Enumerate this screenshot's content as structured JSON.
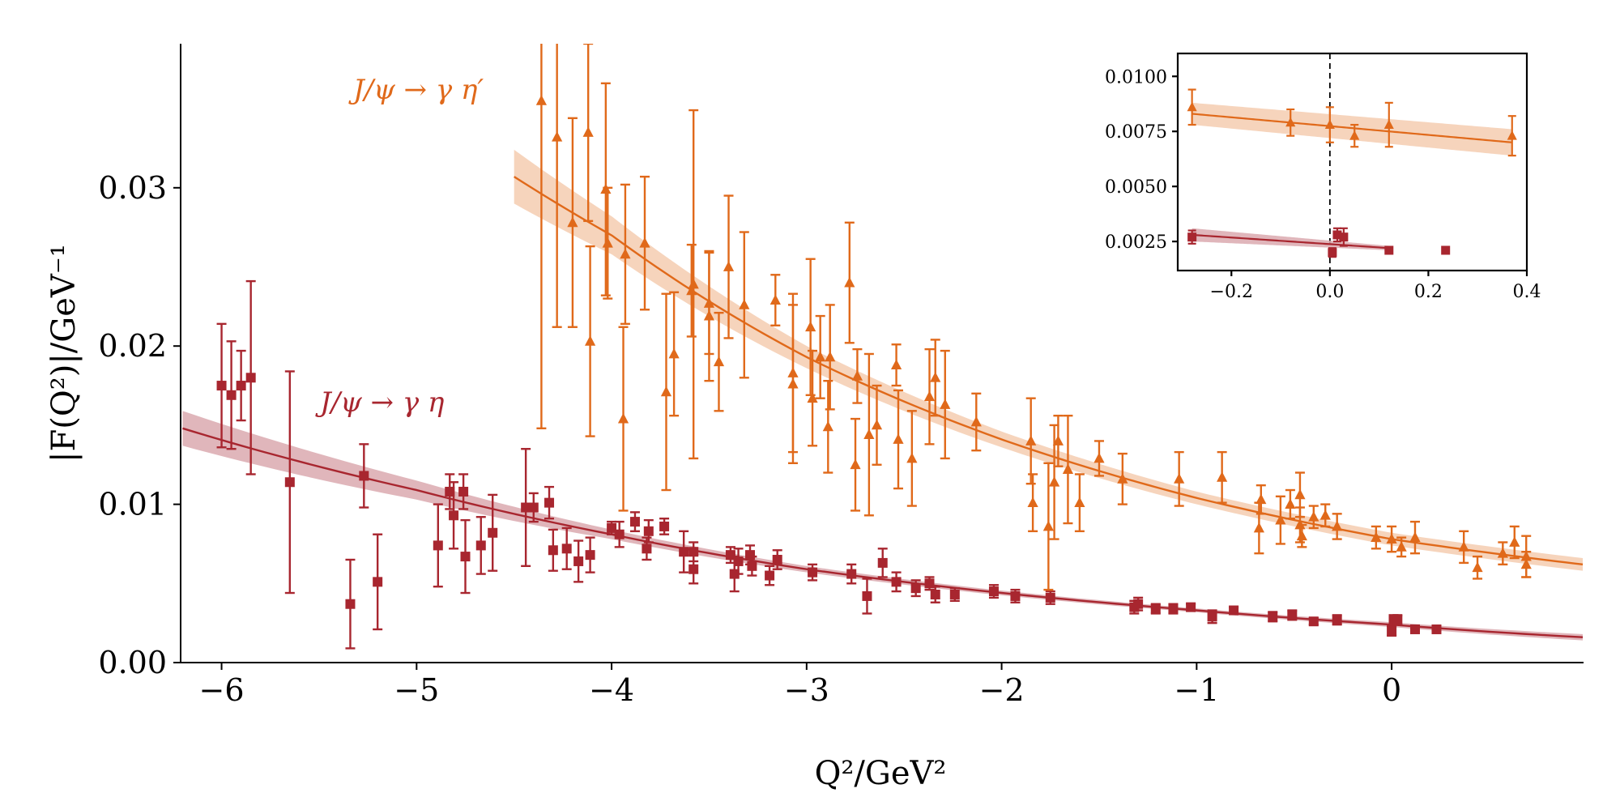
{
  "chart_data": [
    {
      "type": "scatter",
      "xlabel": "Q²/GeV²",
      "ylabel": "|F(Q²)|/GeV⁻¹",
      "xlim": [
        -6.21,
        0.984
      ],
      "ylim": [
        0,
        0.0391
      ],
      "xticks": [
        -6,
        -5,
        -4,
        -3,
        -2,
        -1,
        0
      ],
      "xtick_labels": [
        "−6",
        "−5",
        "−4",
        "−3",
        "−2",
        "−1",
        "0"
      ],
      "yticks": [
        0,
        0.01,
        0.02,
        0.03
      ],
      "ytick_labels": [
        "0.00",
        "0.01",
        "0.02",
        "0.03"
      ],
      "grid": false,
      "series": [
        {
          "name": "J/ψ → γ η",
          "color": "#a8262f",
          "band_color": "#dba9af",
          "marker": "square",
          "points_x_y_err": [
            [
              -6.0,
              0.0175,
              0.0039
            ],
            [
              -5.95,
              0.0169,
              0.0034
            ],
            [
              -5.9,
              0.0175,
              0.0022
            ],
            [
              -5.85,
              0.018,
              0.0061
            ],
            [
              -5.65,
              0.0114,
              0.007
            ],
            [
              -5.34,
              0.0037,
              0.0028
            ],
            [
              -5.27,
              0.0118,
              0.002
            ],
            [
              -5.2,
              0.0051,
              0.003
            ],
            [
              -4.89,
              0.0074,
              0.0026
            ],
            [
              -4.83,
              0.0108,
              0.0011
            ],
            [
              -4.81,
              0.0093,
              0.0021
            ],
            [
              -4.76,
              0.0108,
              0.0011
            ],
            [
              -4.75,
              0.0067,
              0.0023
            ],
            [
              -4.67,
              0.0074,
              0.0018
            ],
            [
              -4.61,
              0.0082,
              0.0024
            ],
            [
              -4.44,
              0.0098,
              0.0037
            ],
            [
              -4.4,
              0.0098,
              0.0009
            ],
            [
              -4.32,
              0.0101,
              0.001
            ],
            [
              -4.3,
              0.0071,
              0.0013
            ],
            [
              -4.23,
              0.0072,
              0.0013
            ],
            [
              -4.17,
              0.0064,
              0.0013
            ],
            [
              -4.11,
              0.0068,
              0.0011
            ],
            [
              -4.0,
              0.0085,
              0.0004
            ],
            [
              -3.96,
              0.0081,
              0.0008
            ],
            [
              -3.88,
              0.0089,
              0.0006
            ],
            [
              -3.82,
              0.0072,
              0.0007
            ],
            [
              -3.81,
              0.0083,
              0.0007
            ],
            [
              -3.73,
              0.0086,
              0.0005
            ],
            [
              -3.63,
              0.007,
              0.0013
            ],
            [
              -3.58,
              0.0059,
              0.0009
            ],
            [
              -3.58,
              0.007,
              0.0006
            ],
            [
              -3.39,
              0.0068,
              0.0005
            ],
            [
              -3.37,
              0.0056,
              0.0011
            ],
            [
              -3.35,
              0.0064,
              0.0008
            ],
            [
              -3.29,
              0.0068,
              0.0006
            ],
            [
              -3.28,
              0.0061,
              0.0006
            ],
            [
              -3.19,
              0.0055,
              0.0006
            ],
            [
              -3.15,
              0.0065,
              0.0006
            ],
            [
              -2.97,
              0.0057,
              0.0005
            ],
            [
              -2.77,
              0.0056,
              0.0006
            ],
            [
              -2.69,
              0.0042,
              0.0011
            ],
            [
              -2.61,
              0.0063,
              0.0009
            ],
            [
              -2.54,
              0.0051,
              0.0006
            ],
            [
              -2.44,
              0.0047,
              0.0005
            ],
            [
              -2.37,
              0.005,
              0.0004
            ],
            [
              -2.34,
              0.0043,
              0.0005
            ],
            [
              -2.24,
              0.0043,
              0.0004
            ],
            [
              -2.04,
              0.0045,
              0.0004
            ],
            [
              -1.93,
              0.0042,
              0.0004
            ],
            [
              -1.75,
              0.0041,
              0.0004
            ],
            [
              -1.32,
              0.0035,
              0.0004
            ],
            [
              -1.3,
              0.0037,
              0.0004
            ],
            [
              -1.21,
              0.0034,
              0.0003
            ],
            [
              -1.12,
              0.0034,
              0.0003
            ],
            [
              -1.03,
              0.0035,
              0.0002
            ],
            [
              -0.92,
              0.0029,
              0.0004
            ],
            [
              -0.81,
              0.0033,
              0.0002
            ],
            [
              -0.61,
              0.0029,
              0.0003
            ],
            [
              -0.51,
              0.003,
              0.0003
            ],
            [
              -0.4,
              0.0026,
              0.0002
            ],
            [
              -0.28,
              0.0027,
              0.0003
            ],
            [
              0.0,
              0.002,
              0.0003
            ],
            [
              0.01,
              0.0027,
              0.0003
            ],
            [
              0.03,
              0.0027,
              0.0003
            ],
            [
              0.12,
              0.0021,
              0.0001
            ],
            [
              0.23,
              0.0021,
              0.0001
            ]
          ],
          "fit_x": [
            -6.2,
            -5,
            -4,
            -3,
            -2,
            -1,
            0,
            0.98
          ],
          "fit_y": [
            0.0148,
            0.0109,
            0.0081,
            0.0059,
            0.0044,
            0.0033,
            0.0024,
            0.0016
          ],
          "fit_band": [
            0.0011,
            0.0006,
            0.0003,
            0.0002,
            0.00015,
            0.00012,
            0.00015,
            0.0002
          ]
        },
        {
          "name": "J/ψ → γ η′",
          "color": "#e0691a",
          "band_color": "#f4cdb0",
          "marker": "triangle",
          "points_x_y_err": [
            [
              -4.36,
              0.0355,
              0.0207
            ],
            [
              -4.28,
              0.0332,
              0.012
            ],
            [
              -4.2,
              0.0278,
              0.0066
            ],
            [
              -4.12,
              0.0335,
              0.0056
            ],
            [
              -4.11,
              0.0203,
              0.006
            ],
            [
              -4.03,
              0.0299,
              0.0067
            ],
            [
              -4.02,
              0.0265,
              0.0035
            ],
            [
              -3.94,
              0.0154,
              0.0058
            ],
            [
              -3.93,
              0.0258,
              0.0044
            ],
            [
              -3.83,
              0.0265,
              0.0042
            ],
            [
              -3.72,
              0.0171,
              0.0062
            ],
            [
              -3.68,
              0.0195,
              0.0039
            ],
            [
              -3.59,
              0.0235,
              0.0029
            ],
            [
              -3.58,
              0.0239,
              0.011
            ],
            [
              -3.5,
              0.0219,
              0.0041
            ],
            [
              -3.5,
              0.0227,
              0.0032
            ],
            [
              -3.45,
              0.019,
              0.0031
            ],
            [
              -3.4,
              0.025,
              0.0045
            ],
            [
              -3.32,
              0.0226,
              0.0046
            ],
            [
              -3.16,
              0.0229,
              0.0016
            ],
            [
              -3.07,
              0.0183,
              0.005
            ],
            [
              -3.07,
              0.0176,
              0.005
            ],
            [
              -2.98,
              0.0212,
              0.0043
            ],
            [
              -2.97,
              0.0167,
              0.003
            ],
            [
              -2.93,
              0.0193,
              0.0026
            ],
            [
              -2.89,
              0.0149,
              0.0029
            ],
            [
              -2.88,
              0.0193,
              0.0033
            ],
            [
              -2.78,
              0.024,
              0.0038
            ],
            [
              -2.75,
              0.0125,
              0.0029
            ],
            [
              -2.74,
              0.0181,
              0.0017
            ],
            [
              -2.68,
              0.0144,
              0.0051
            ],
            [
              -2.64,
              0.015,
              0.0025
            ],
            [
              -2.54,
              0.0188,
              0.0013
            ],
            [
              -2.53,
              0.0141,
              0.0031
            ],
            [
              -2.46,
              0.0129,
              0.003
            ],
            [
              -2.37,
              0.0168,
              0.003
            ],
            [
              -2.34,
              0.018,
              0.0024
            ],
            [
              -2.29,
              0.0163,
              0.0034
            ],
            [
              -2.13,
              0.0152,
              0.0018
            ],
            [
              -1.85,
              0.014,
              0.0027
            ],
            [
              -1.84,
              0.0101,
              0.0018
            ],
            [
              -1.76,
              0.0086,
              0.004
            ],
            [
              -1.73,
              0.0114,
              0.0036
            ],
            [
              -1.71,
              0.014,
              0.0016
            ],
            [
              -1.66,
              0.0122,
              0.0034
            ],
            [
              -1.6,
              0.0101,
              0.0018
            ],
            [
              -1.5,
              0.0129,
              0.0011
            ],
            [
              -1.38,
              0.0116,
              0.0016
            ],
            [
              -1.09,
              0.0116,
              0.0017
            ],
            [
              -0.87,
              0.0117,
              0.0016
            ],
            [
              -0.68,
              0.0085,
              0.0016
            ],
            [
              -0.67,
              0.0103,
              0.0009
            ],
            [
              -0.57,
              0.009,
              0.0015
            ],
            [
              -0.52,
              0.01,
              0.0009
            ],
            [
              -0.47,
              0.0106,
              0.0014
            ],
            [
              -0.47,
              0.0087,
              0.0011
            ],
            [
              -0.46,
              0.008,
              0.0007
            ],
            [
              -0.4,
              0.0092,
              0.0007
            ],
            [
              -0.34,
              0.0093,
              0.0007
            ],
            [
              -0.28,
              0.0086,
              0.0008
            ],
            [
              -0.08,
              0.0079,
              0.0007
            ],
            [
              0.0,
              0.0078,
              0.0008
            ],
            [
              0.05,
              0.0073,
              0.0006
            ],
            [
              0.12,
              0.0079,
              0.001
            ],
            [
              0.37,
              0.0073,
              0.001
            ],
            [
              0.44,
              0.006,
              0.0007
            ],
            [
              0.57,
              0.0069,
              0.0007
            ],
            [
              0.63,
              0.0076,
              0.001
            ],
            [
              0.69,
              0.0067,
              0.0013
            ],
            [
              0.69,
              0.0062,
              0.0008
            ]
          ],
          "fit_x": [
            -4.5,
            -4,
            -3,
            -2,
            -1,
            0,
            0.98
          ],
          "fit_y": [
            0.0307,
            0.027,
            0.0193,
            0.0141,
            0.0104,
            0.0078,
            0.0062
          ],
          "fit_band": [
            0.0017,
            0.0012,
            0.0007,
            0.0005,
            0.0004,
            0.0004,
            0.0004
          ]
        }
      ],
      "annotations": [
        {
          "text": "J/ψ → γ η′",
          "series": 1
        },
        {
          "text": "J/ψ → γ η",
          "series": 0
        }
      ]
    },
    {
      "type": "scatter",
      "role": "inset",
      "xlim": [
        -0.309,
        0.4
      ],
      "ylim": [
        0.00118,
        0.01104
      ],
      "xticks": [
        -0.2,
        0.0,
        0.2,
        0.4
      ],
      "xtick_labels": [
        "−0.2",
        "0.0",
        "0.2",
        "0.4"
      ],
      "yticks": [
        0.0025,
        0.005,
        0.0075,
        0.01
      ],
      "ytick_labels": [
        "0.0025",
        "0.0050",
        "0.0075",
        "0.0100"
      ],
      "vline_x": 0.0,
      "grid": false,
      "series": [
        {
          "color": "#e0691a",
          "band_color": "#f4cdb0",
          "marker": "triangle",
          "points_x_y_err": [
            [
              -0.28,
              0.0086,
              0.0008
            ],
            [
              -0.08,
              0.0079,
              0.0006
            ],
            [
              0.0,
              0.0078,
              0.0008
            ],
            [
              0.05,
              0.0073,
              0.0005
            ],
            [
              0.12,
              0.0078,
              0.001
            ],
            [
              0.37,
              0.0073,
              0.0009
            ]
          ],
          "fit_x": [
            -0.28,
            0.37
          ],
          "fit_y": [
            0.0083,
            0.007
          ],
          "fit_band": [
            0.0005,
            0.0006
          ]
        },
        {
          "color": "#a8262f",
          "band_color": "#dba9af",
          "marker": "square",
          "points_x_y_err": [
            [
              -0.28,
              0.0027,
              0.0003
            ],
            [
              0.005,
              0.002,
              0.0002
            ],
            [
              0.015,
              0.0028,
              0.0003
            ],
            [
              0.028,
              0.0027,
              0.0004
            ],
            [
              0.12,
              0.0021,
              0.0001
            ],
            [
              0.235,
              0.0021,
              0.0
            ]
          ],
          "fit_x": [
            -0.28,
            0.12
          ],
          "fit_y": [
            0.0028,
            0.0022
          ],
          "fit_band": [
            0.0003,
            0.0001
          ]
        }
      ]
    }
  ]
}
